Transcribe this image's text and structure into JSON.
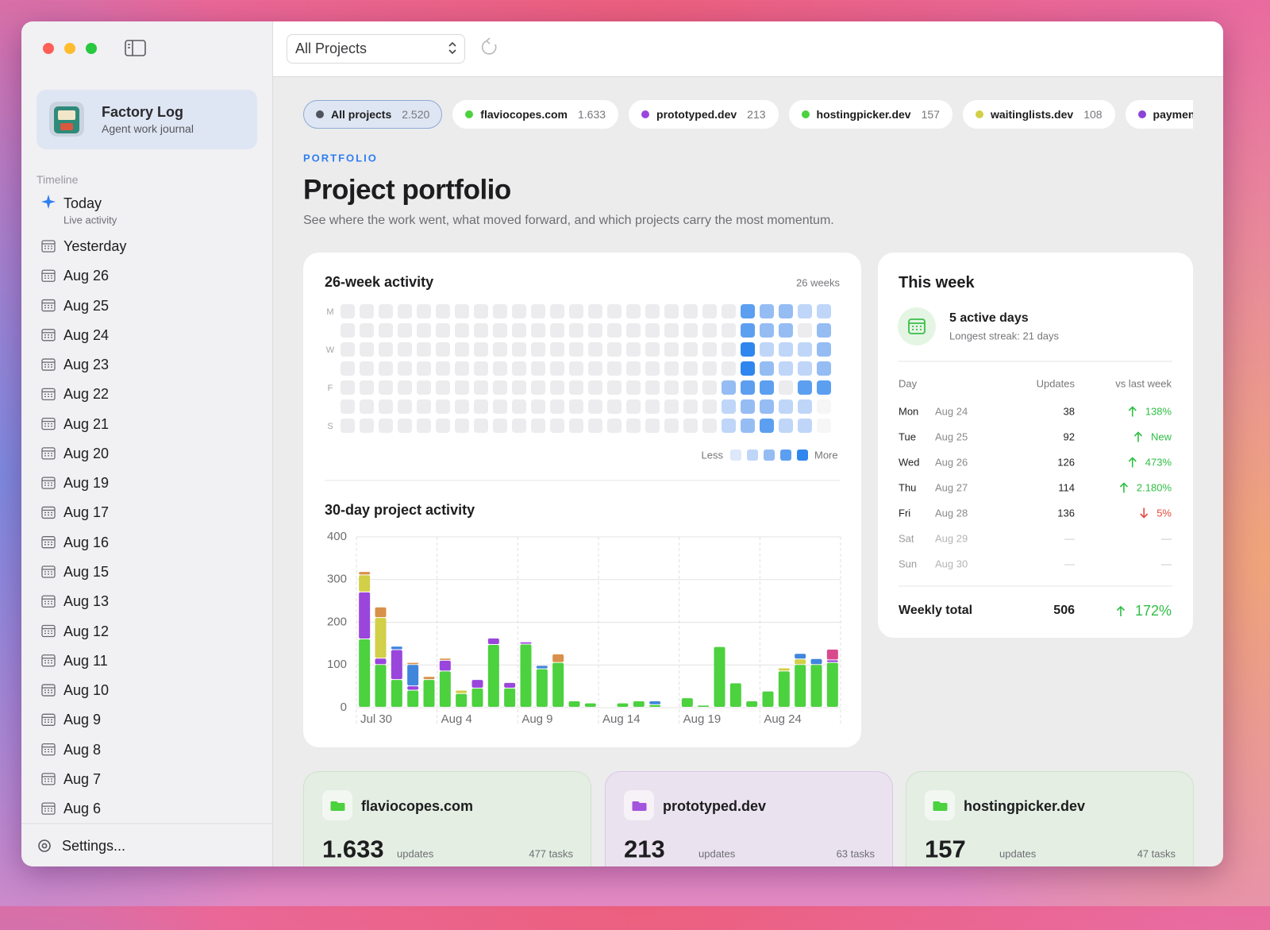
{
  "sidebar": {
    "app_name": "Factory Log",
    "app_subtitle": "Agent work journal",
    "section": "Timeline",
    "today": {
      "label": "Today",
      "sub": "Live activity"
    },
    "days": [
      "Yesterday",
      "Aug 26",
      "Aug 25",
      "Aug 24",
      "Aug 23",
      "Aug 22",
      "Aug 21",
      "Aug 20",
      "Aug 19",
      "Aug 17",
      "Aug 16",
      "Aug 15",
      "Aug 13",
      "Aug 12",
      "Aug 11",
      "Aug 10",
      "Aug 9",
      "Aug 8",
      "Aug 7",
      "Aug 6"
    ],
    "settings": "Settings..."
  },
  "toolbar": {
    "project_select": "All Projects"
  },
  "filters": [
    {
      "name": "All projects",
      "count": "2.520",
      "color": "#4f545e",
      "selected": true
    },
    {
      "name": "flaviocopes.com",
      "count": "1.633",
      "color": "#4cd13f"
    },
    {
      "name": "prototyped.dev",
      "count": "213",
      "color": "#9a46dd"
    },
    {
      "name": "hostingpicker.dev",
      "count": "157",
      "color": "#4cd13f"
    },
    {
      "name": "waitinglists.dev",
      "count": "108",
      "color": "#d2cf48"
    },
    {
      "name": "paymentproc",
      "color": "#8a44d6"
    }
  ],
  "header": {
    "eyebrow": "PORTFOLIO",
    "title": "Project portfolio",
    "subtitle": "See where the work went, what moved forward, and which projects carry the most momentum."
  },
  "activity": {
    "title": "26-week activity",
    "range": "26 weeks",
    "day_labels": [
      "M",
      null,
      "W",
      null,
      "F",
      null,
      "S"
    ],
    "colors": [
      "#ececee",
      "#dde8fb",
      "#bfd6f8",
      "#95bdf4",
      "#5c9ff0",
      "#2f86ee"
    ],
    "future_color": "#f6f6f7",
    "levels": [
      [
        0,
        0,
        0,
        0,
        0,
        0,
        0,
        0,
        0,
        0,
        0,
        0,
        0,
        0,
        0,
        0,
        0,
        0,
        0,
        0,
        0,
        4,
        3,
        3,
        2,
        2
      ],
      [
        0,
        0,
        0,
        0,
        0,
        0,
        0,
        0,
        0,
        0,
        0,
        0,
        0,
        0,
        0,
        0,
        0,
        0,
        0,
        0,
        0,
        4,
        3,
        3,
        0,
        3
      ],
      [
        0,
        0,
        0,
        0,
        0,
        0,
        0,
        0,
        0,
        0,
        0,
        0,
        0,
        0,
        0,
        0,
        0,
        0,
        0,
        0,
        0,
        5,
        2,
        2,
        2,
        3
      ],
      [
        0,
        0,
        0,
        0,
        0,
        0,
        0,
        0,
        0,
        0,
        0,
        0,
        0,
        0,
        0,
        0,
        0,
        0,
        0,
        0,
        0,
        5,
        3,
        2,
        2,
        3
      ],
      [
        0,
        0,
        0,
        0,
        0,
        0,
        0,
        0,
        0,
        0,
        0,
        0,
        0,
        0,
        0,
        0,
        0,
        0,
        0,
        0,
        3,
        4,
        4,
        0,
        4,
        4
      ],
      [
        0,
        0,
        0,
        0,
        0,
        0,
        0,
        0,
        0,
        0,
        0,
        0,
        0,
        0,
        0,
        0,
        0,
        0,
        0,
        0,
        2,
        3,
        3,
        2,
        2,
        null
      ],
      [
        0,
        0,
        0,
        0,
        0,
        0,
        0,
        0,
        0,
        0,
        0,
        0,
        0,
        0,
        0,
        0,
        0,
        0,
        0,
        0,
        2,
        3,
        4,
        2,
        2,
        null
      ]
    ],
    "legend_less": "Less",
    "legend_more": "More"
  },
  "chart_data": {
    "type": "stacked_bar",
    "title": "30-day project activity",
    "categories": [
      "Jul 30",
      null,
      null,
      null,
      null,
      "Aug 4",
      null,
      null,
      null,
      null,
      "Aug 9",
      null,
      null,
      null,
      null,
      "Aug 14",
      null,
      null,
      null,
      null,
      "Aug 19",
      null,
      null,
      null,
      null,
      "Aug 24",
      null,
      null,
      null,
      null
    ],
    "ylim": [
      0,
      400
    ],
    "yticks": [
      0,
      100,
      200,
      300,
      400
    ],
    "grid": true,
    "series": [
      {
        "name": "flaviocopes.com",
        "color": "#4cd13f",
        "values": [
          160,
          100,
          65,
          40,
          65,
          85,
          32,
          45,
          147,
          45,
          148,
          90,
          105,
          15,
          10,
          0,
          10,
          15,
          6,
          0,
          22,
          5,
          142,
          57,
          15,
          38,
          85,
          100,
          100,
          105
        ]
      },
      {
        "name": "prototyped.dev",
        "color": "#9a46dd",
        "values": [
          110,
          15,
          70,
          10,
          0,
          25,
          0,
          20,
          15,
          13,
          5,
          0,
          0,
          0,
          0,
          0,
          0,
          0,
          0,
          0,
          0,
          0,
          0,
          0,
          0,
          0,
          0,
          0,
          0,
          6
        ]
      },
      {
        "name": "waitinglists.dev",
        "color": "#d2cf48",
        "values": [
          40,
          95,
          0,
          0,
          0,
          0,
          8,
          0,
          0,
          0,
          0,
          0,
          0,
          0,
          0,
          0,
          0,
          0,
          0,
          0,
          0,
          0,
          0,
          0,
          0,
          0,
          7,
          13,
          0,
          0
        ]
      },
      {
        "color": "#3f86dc",
        "values": [
          0,
          0,
          8,
          50,
          0,
          0,
          0,
          0,
          0,
          0,
          0,
          8,
          0,
          0,
          0,
          0,
          0,
          0,
          9,
          0,
          0,
          0,
          0,
          0,
          0,
          0,
          0,
          13,
          14,
          0
        ]
      },
      {
        "color": "#d9904a",
        "values": [
          8,
          25,
          0,
          5,
          7,
          5,
          0,
          0,
          0,
          0,
          0,
          0,
          20,
          0,
          0,
          0,
          0,
          0,
          0,
          0,
          0,
          0,
          0,
          0,
          0,
          0,
          0,
          0,
          0,
          0
        ]
      },
      {
        "color": "#d94a8c",
        "values": [
          0,
          0,
          0,
          0,
          0,
          0,
          0,
          0,
          0,
          0,
          0,
          0,
          0,
          0,
          0,
          0,
          0,
          0,
          0,
          0,
          0,
          0,
          0,
          0,
          0,
          0,
          0,
          0,
          0,
          25
        ]
      }
    ]
  },
  "this_week": {
    "title": "This week",
    "active_days": "5 active days",
    "streak": "Longest streak: 21 days",
    "columns": [
      "Day",
      "Updates",
      "vs last week"
    ],
    "rows": [
      {
        "day": "Mon",
        "date": "Aug 24",
        "updates": "38",
        "change": "138%",
        "trend": "up"
      },
      {
        "day": "Tue",
        "date": "Aug 25",
        "updates": "92",
        "change": "New",
        "trend": "up"
      },
      {
        "day": "Wed",
        "date": "Aug 26",
        "updates": "126",
        "change": "473%",
        "trend": "up"
      },
      {
        "day": "Thu",
        "date": "Aug 27",
        "updates": "114",
        "change": "2.180%",
        "trend": "up"
      },
      {
        "day": "Fri",
        "date": "Aug 28",
        "updates": "136",
        "change": "5%",
        "trend": "down"
      },
      {
        "day": "Sat",
        "date": "Aug 29",
        "updates": "—",
        "change": "—"
      },
      {
        "day": "Sun",
        "date": "Aug 30",
        "updates": "—",
        "change": "—"
      }
    ],
    "total_label": "Weekly total",
    "total": "506",
    "total_change": "172%",
    "total_trend": "up"
  },
  "project_cards": [
    {
      "name": "flaviocopes.com",
      "updates": "1.633",
      "unit": "updates",
      "tasks": "477 tasks",
      "color": "#4cd13f",
      "tint": "#e4eee3",
      "border": "#cfe3cb"
    },
    {
      "name": "prototyped.dev",
      "updates": "213",
      "unit": "updates",
      "tasks": "63 tasks",
      "color": "#a355dd",
      "tint": "#ebe2ef",
      "border": "#dbc6e6"
    },
    {
      "name": "hostingpicker.dev",
      "updates": "157",
      "unit": "updates",
      "tasks": "47 tasks",
      "color": "#4cd13f",
      "tint": "#e4eee3",
      "border": "#cfe3cb"
    }
  ]
}
